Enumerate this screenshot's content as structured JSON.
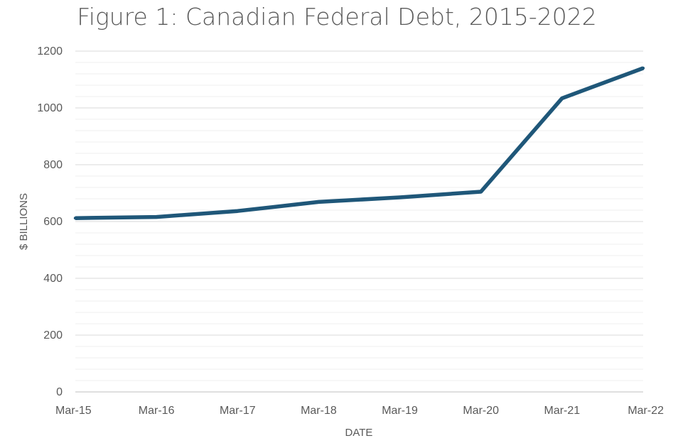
{
  "chart_data": {
    "type": "line",
    "title": "Figure 1: Canadian Federal Debt, 2015-2022",
    "xlabel": "DATE",
    "ylabel": "$ BILLIONS",
    "categories": [
      "Mar-15",
      "Mar-16",
      "Mar-17",
      "Mar-18",
      "Mar-19",
      "Mar-20",
      "Mar-21",
      "Mar-22"
    ],
    "series": [
      {
        "values": [
          612,
          616,
          637,
          669,
          685,
          705,
          1034,
          1140
        ],
        "color": "#1f5779"
      }
    ],
    "ylim": [
      0,
      1200
    ],
    "yticks": [
      {
        "value": 0,
        "label": "0"
      },
      {
        "value": 200,
        "label": "200"
      },
      {
        "value": 400,
        "label": "400"
      },
      {
        "value": 600,
        "label": "600"
      },
      {
        "value": 800,
        "label": "800"
      },
      {
        "value": 1000,
        "label": "1000"
      },
      {
        "value": 1200,
        "label": "1200"
      }
    ],
    "minor_grid_step": 40,
    "grid": true,
    "legend": "none"
  }
}
